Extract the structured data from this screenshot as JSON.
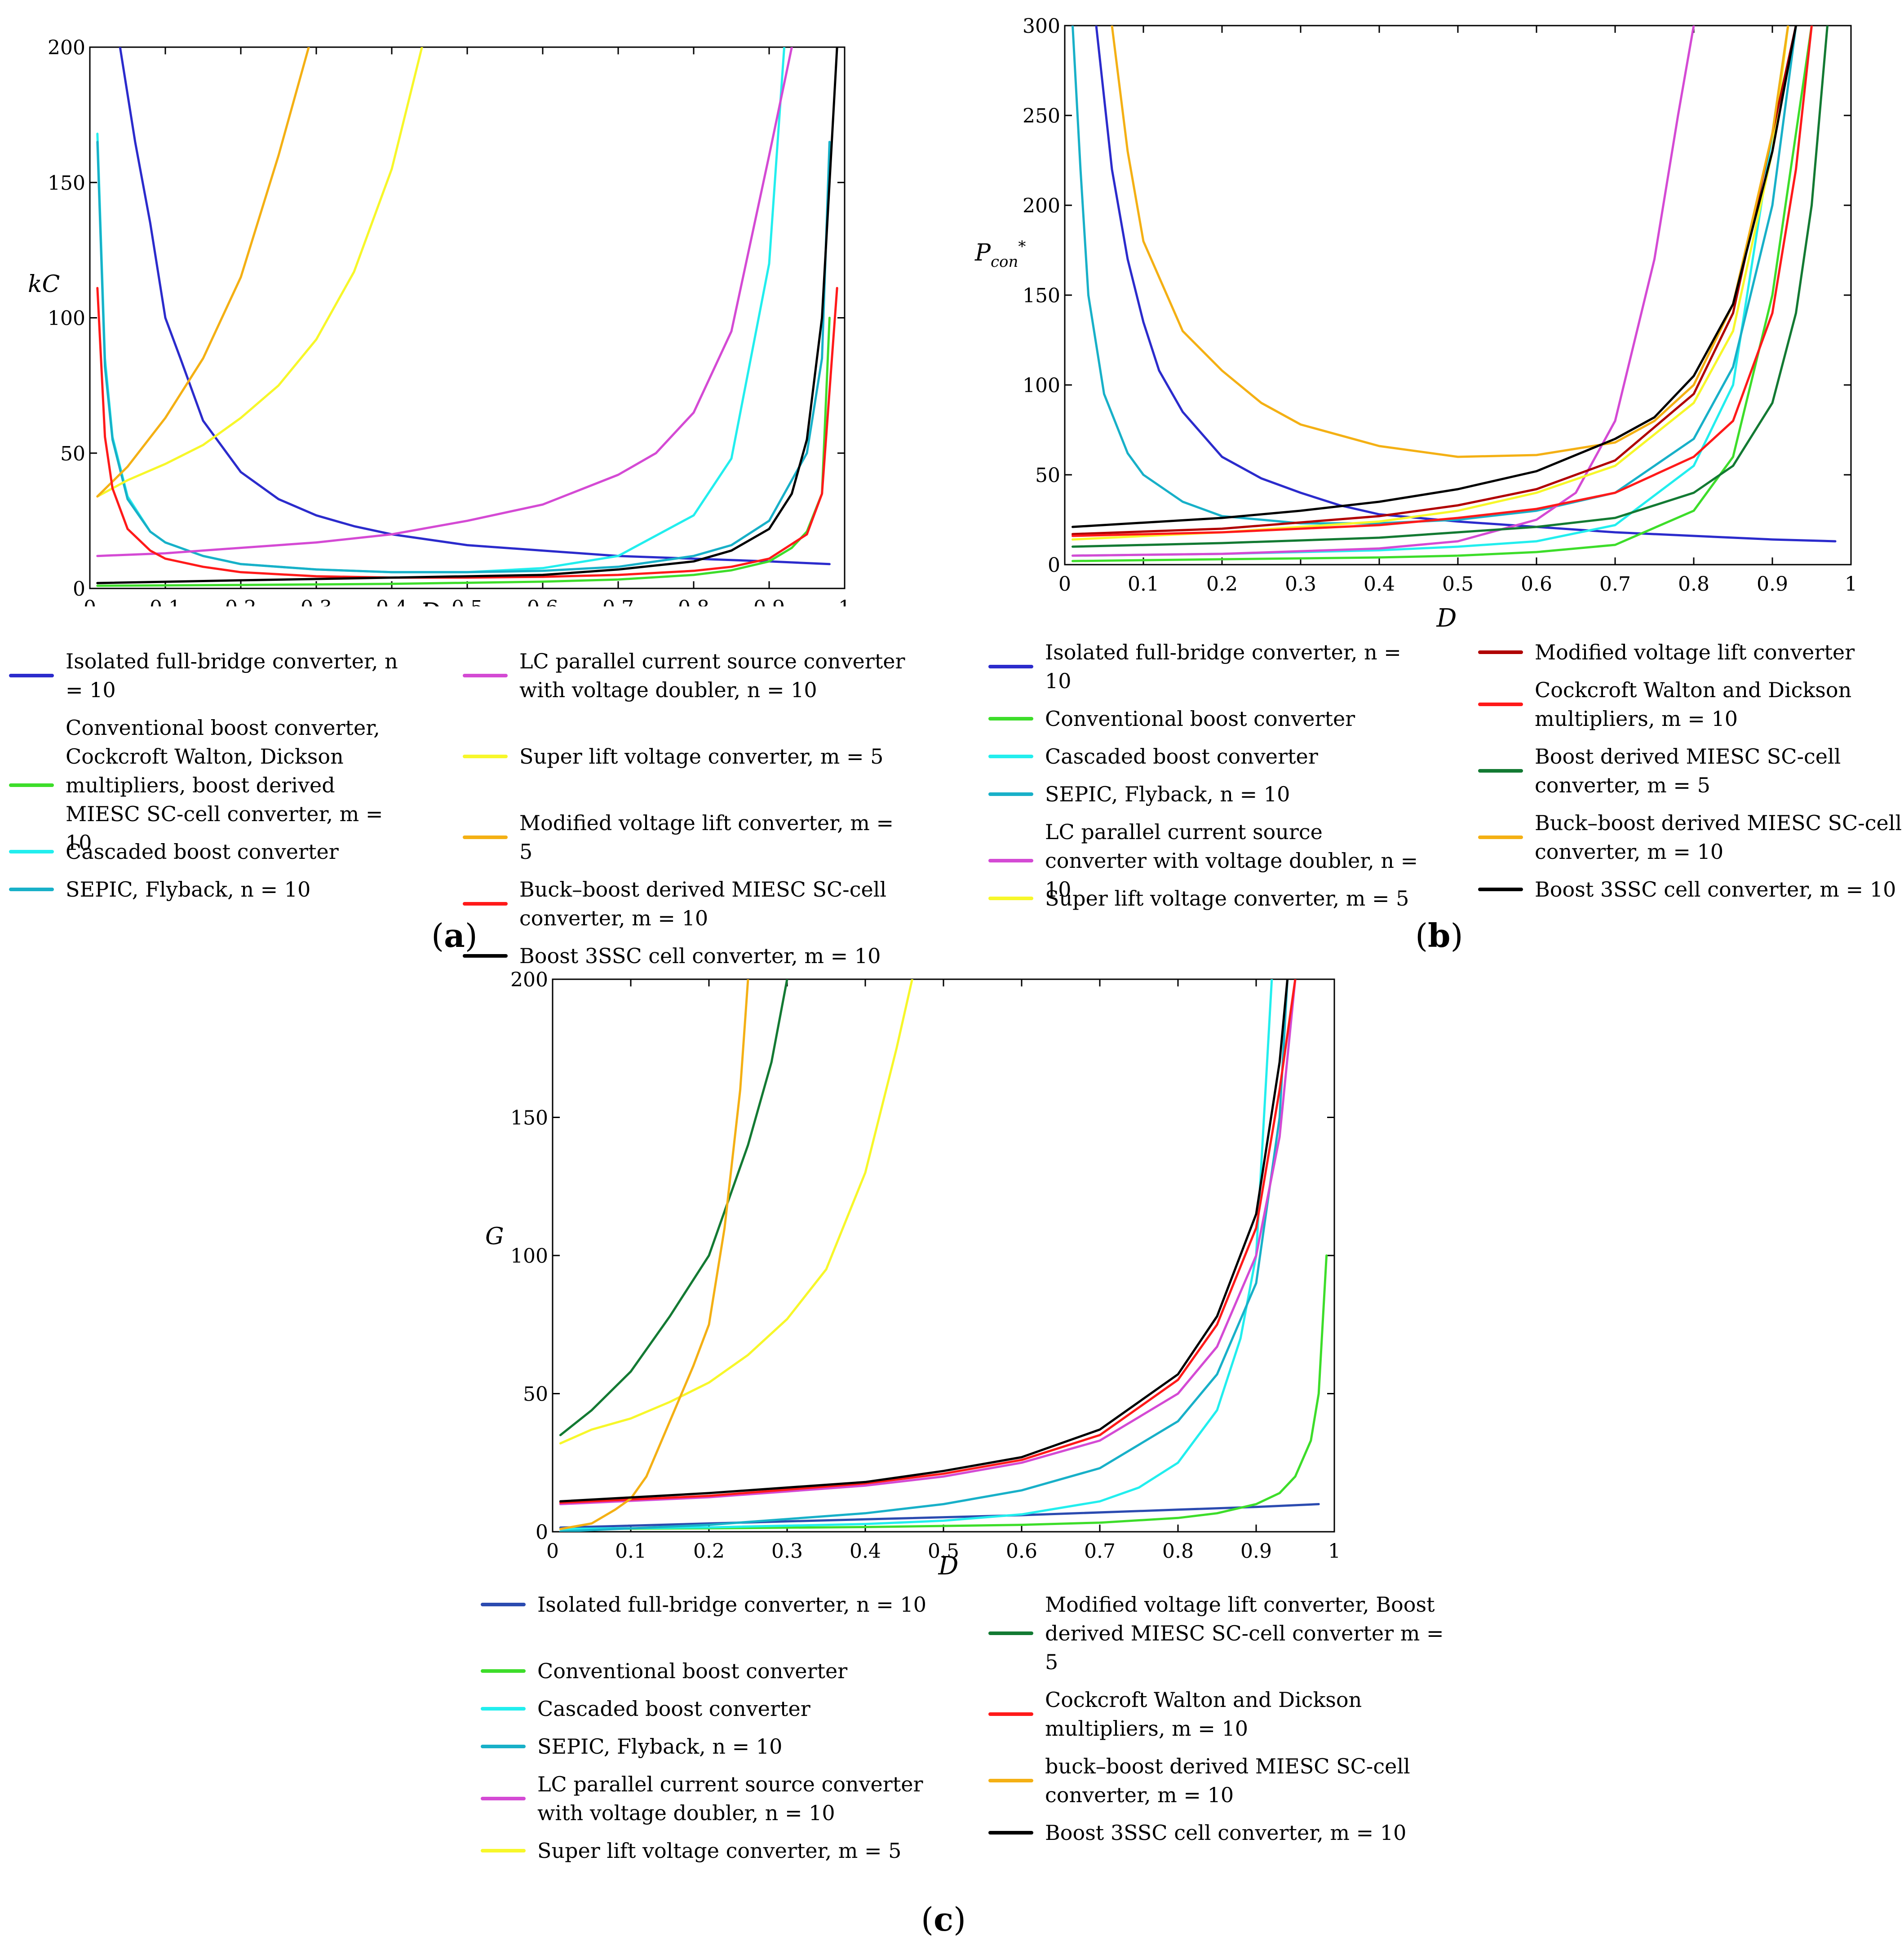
{
  "chart_data": [
    {
      "id": "a",
      "type": "line",
      "caption_letter": "a",
      "xlabel": "D",
      "ylabel": "kC",
      "xlim": [
        0,
        1
      ],
      "ylim": [
        0,
        200
      ],
      "x_ticks": [
        "0",
        "0.1",
        "0.2",
        "0.3",
        "0.4",
        "0.5",
        "0.6",
        "0.7",
        "0.8",
        "0.9",
        "1"
      ],
      "y_ticks": [
        "0",
        "50",
        "100",
        "150",
        "200"
      ],
      "series": [
        {
          "name": "Isolated full-bridge converter, n = 10",
          "color": "#2b2bcc",
          "x": [
            0.04,
            0.06,
            0.08,
            0.1,
            0.12,
            0.15,
            0.2,
            0.25,
            0.3,
            0.35,
            0.4,
            0.5,
            0.6,
            0.7,
            0.8,
            0.9,
            0.98
          ],
          "y": [
            200,
            165,
            135,
            100,
            85,
            62,
            43,
            33,
            27,
            23,
            20,
            16,
            14,
            12,
            11,
            10,
            9
          ]
        },
        {
          "name": "Conventional boost converter, Cockcroft Walton, Dickson multipliers, boost derived MIESC SC-cell converter, m = 10",
          "color": "#3ddd2a",
          "x": [
            0.01,
            0.2,
            0.4,
            0.6,
            0.7,
            0.8,
            0.85,
            0.9,
            0.93,
            0.95,
            0.97,
            0.98
          ],
          "y": [
            1,
            1.3,
            1.7,
            2.5,
            3.3,
            5,
            6.7,
            10,
            15,
            21,
            35,
            100
          ]
        },
        {
          "name": "Cascaded boost converter",
          "color": "#22eeee",
          "x": [
            0.01,
            0.02,
            0.03,
            0.05,
            0.08,
            0.1,
            0.15,
            0.2,
            0.3,
            0.4,
            0.5,
            0.6,
            0.7,
            0.8,
            0.85,
            0.9,
            0.92
          ],
          "y": [
            168,
            85,
            56,
            34,
            21,
            17,
            12,
            9,
            7,
            6,
            6,
            7.5,
            12,
            27,
            48,
            120,
            200
          ]
        },
        {
          "name": "SEPIC, Flyback, n = 10",
          "color": "#18b0c8",
          "x": [
            0.01,
            0.02,
            0.03,
            0.05,
            0.08,
            0.1,
            0.15,
            0.2,
            0.3,
            0.4,
            0.5,
            0.6,
            0.7,
            0.8,
            0.85,
            0.9,
            0.95,
            0.97,
            0.98
          ],
          "y": [
            165,
            82,
            55,
            33,
            21,
            17,
            12,
            9,
            7,
            6,
            6,
            6.5,
            8,
            12,
            16,
            25,
            50,
            85,
            165
          ]
        },
        {
          "name": "LC parallel current source converter with voltage doubler, n = 10",
          "color": "#d44ad4",
          "x": [
            0.01,
            0.1,
            0.2,
            0.3,
            0.4,
            0.5,
            0.6,
            0.7,
            0.75,
            0.8,
            0.85,
            0.9,
            0.93
          ],
          "y": [
            12,
            13,
            15,
            17,
            20,
            25,
            31,
            42,
            50,
            65,
            95,
            160,
            200
          ]
        },
        {
          "name": "Super lift voltage converter, m = 5",
          "color": "#f7f72a",
          "x": [
            0.01,
            0.05,
            0.1,
            0.15,
            0.2,
            0.25,
            0.3,
            0.35,
            0.4,
            0.44
          ],
          "y": [
            34,
            40,
            46,
            53,
            63,
            75,
            92,
            117,
            155,
            200
          ]
        },
        {
          "name": "Modified voltage lift converter, m = 5",
          "color": "#f4b014",
          "x": [
            0.01,
            0.05,
            0.1,
            0.15,
            0.2,
            0.25,
            0.29
          ],
          "y": [
            34,
            45,
            63,
            85,
            115,
            160,
            200
          ]
        },
        {
          "name": "Buck–boost derived MIESC SC-cell converter, m = 10",
          "color": "#ff1a1a",
          "x": [
            0.01,
            0.02,
            0.03,
            0.05,
            0.08,
            0.1,
            0.15,
            0.2,
            0.3,
            0.4,
            0.5,
            0.6,
            0.7,
            0.8,
            0.85,
            0.9,
            0.95,
            0.97,
            0.99
          ],
          "y": [
            111,
            56,
            37,
            22,
            14,
            11,
            8,
            6,
            4.5,
            4,
            4,
            4.3,
            5,
            6.5,
            8,
            11,
            20,
            35,
            111
          ]
        },
        {
          "name": "Boost 3SSC cell converter, m = 10",
          "color": "#000000",
          "x": [
            0.01,
            0.2,
            0.4,
            0.6,
            0.7,
            0.8,
            0.85,
            0.9,
            0.93,
            0.95,
            0.97,
            0.98,
            0.99
          ],
          "y": [
            2,
            3,
            4,
            5,
            7,
            10,
            14,
            22,
            35,
            55,
            100,
            150,
            200
          ]
        }
      ],
      "legend_left": [
        0,
        1,
        2,
        3
      ],
      "legend_right": [
        4,
        5,
        6,
        7,
        8
      ]
    },
    {
      "id": "b",
      "type": "line",
      "caption_letter": "b",
      "xlabel": "D",
      "ylabel_main": "P",
      "ylabel_sub": "con",
      "ylabel_sup": "*",
      "xlim": [
        0,
        1
      ],
      "ylim": [
        0,
        300
      ],
      "x_ticks": [
        "0",
        "0.1",
        "0.2",
        "0.3",
        "0.4",
        "0.5",
        "0.6",
        "0.7",
        "0.8",
        "0.9",
        "1"
      ],
      "y_ticks": [
        "0",
        "50",
        "100",
        "150",
        "200",
        "250",
        "300"
      ],
      "series": [
        {
          "name": "Isolated full-bridge converter, n = 10",
          "color": "#2b2bcc",
          "x": [
            0.04,
            0.06,
            0.08,
            0.1,
            0.12,
            0.15,
            0.2,
            0.25,
            0.3,
            0.35,
            0.4,
            0.5,
            0.6,
            0.7,
            0.8,
            0.9,
            0.98
          ],
          "y": [
            300,
            220,
            170,
            135,
            108,
            85,
            60,
            48,
            40,
            33,
            28,
            24,
            21,
            18,
            16,
            14,
            13
          ]
        },
        {
          "name": "Conventional boost converter",
          "color": "#3ddd2a",
          "x": [
            0.01,
            0.2,
            0.4,
            0.5,
            0.6,
            0.7,
            0.8,
            0.85,
            0.9,
            0.93,
            0.95
          ],
          "y": [
            2,
            3,
            4,
            5,
            7,
            11,
            30,
            60,
            150,
            240,
            300
          ]
        },
        {
          "name": "Cascaded boost converter",
          "color": "#22eeee",
          "x": [
            0.01,
            0.2,
            0.4,
            0.5,
            0.6,
            0.7,
            0.8,
            0.85,
            0.9,
            0.92
          ],
          "y": [
            5,
            6,
            8,
            10,
            13,
            22,
            55,
            100,
            240,
            300
          ]
        },
        {
          "name": "SEPIC, Flyback, n = 10",
          "color": "#18b0c8",
          "x": [
            0.01,
            0.02,
            0.03,
            0.05,
            0.08,
            0.1,
            0.15,
            0.2,
            0.3,
            0.4,
            0.5,
            0.6,
            0.7,
            0.8,
            0.85,
            0.9,
            0.93
          ],
          "y": [
            300,
            220,
            150,
            95,
            62,
            50,
            35,
            27,
            23,
            23,
            25,
            30,
            40,
            70,
            110,
            200,
            300
          ]
        },
        {
          "name": "LC parallel current source converter with voltage doubler, n = 10",
          "color": "#d44ad4",
          "x": [
            0.01,
            0.2,
            0.4,
            0.5,
            0.6,
            0.65,
            0.7,
            0.75,
            0.78,
            0.8
          ],
          "y": [
            5,
            6,
            9,
            13,
            25,
            40,
            80,
            170,
            250,
            300
          ]
        },
        {
          "name": "Super lift voltage converter, m = 5",
          "color": "#f7f72a",
          "x": [
            0.01,
            0.2,
            0.4,
            0.5,
            0.6,
            0.7,
            0.8,
            0.85,
            0.9,
            0.92
          ],
          "y": [
            14,
            18,
            24,
            30,
            40,
            55,
            90,
            130,
            230,
            300
          ]
        },
        {
          "name": "Modified voltage lift converter",
          "color": "#b00000",
          "x": [
            0.01,
            0.2,
            0.4,
            0.5,
            0.6,
            0.7,
            0.8,
            0.85,
            0.9,
            0.93
          ],
          "y": [
            17,
            20,
            27,
            33,
            42,
            58,
            95,
            140,
            240,
            300
          ]
        },
        {
          "name": "Cockcroft Walton and Dickson multipliers, m = 10",
          "color": "#ff1a1a",
          "x": [
            0.01,
            0.2,
            0.4,
            0.5,
            0.6,
            0.7,
            0.8,
            0.85,
            0.9,
            0.93,
            0.95
          ],
          "y": [
            16,
            18,
            22,
            26,
            31,
            40,
            60,
            80,
            140,
            220,
            300
          ]
        },
        {
          "name": "Boost derived MIESC SC-cell converter, m = 5",
          "color": "#137a33",
          "x": [
            0.01,
            0.2,
            0.4,
            0.5,
            0.6,
            0.7,
            0.8,
            0.85,
            0.9,
            0.93,
            0.95,
            0.97
          ],
          "y": [
            10,
            12,
            15,
            18,
            21,
            26,
            40,
            55,
            90,
            140,
            200,
            300
          ]
        },
        {
          "name": "Buck–boost derived MIESC SC-cell converter, m = 10",
          "color": "#f4b014",
          "x": [
            0.06,
            0.08,
            0.1,
            0.15,
            0.2,
            0.25,
            0.3,
            0.4,
            0.5,
            0.6,
            0.7,
            0.75,
            0.8,
            0.85,
            0.9,
            0.92
          ],
          "y": [
            300,
            230,
            180,
            130,
            108,
            90,
            78,
            66,
            60,
            61,
            68,
            80,
            100,
            145,
            240,
            300
          ]
        },
        {
          "name": "Boost 3SSC cell converter, m = 10",
          "color": "#000000",
          "x": [
            0.01,
            0.2,
            0.3,
            0.4,
            0.5,
            0.6,
            0.7,
            0.75,
            0.8,
            0.85,
            0.9,
            0.93
          ],
          "y": [
            21,
            26,
            30,
            35,
            42,
            52,
            70,
            82,
            105,
            145,
            230,
            300
          ]
        }
      ],
      "legend_left": [
        0,
        1,
        2,
        3,
        4,
        5
      ],
      "legend_right": [
        6,
        7,
        8,
        9,
        10
      ]
    },
    {
      "id": "c",
      "type": "line",
      "caption_letter": "c",
      "xlabel": "D",
      "ylabel": "G",
      "xlim": [
        0,
        1
      ],
      "ylim": [
        0,
        200
      ],
      "x_ticks": [
        "0",
        "0.1",
        "0.2",
        "0.3",
        "0.4",
        "0.5",
        "0.6",
        "0.7",
        "0.8",
        "0.9",
        "1"
      ],
      "y_ticks": [
        "0",
        "50",
        "100",
        "150",
        "200"
      ],
      "series": [
        {
          "name": "Isolated full-bridge converter, n = 10",
          "color": "#2b4bb0",
          "x": [
            0.01,
            0.2,
            0.4,
            0.6,
            0.8,
            0.9,
            0.98
          ],
          "y": [
            1.5,
            3,
            4.5,
            6,
            8,
            9,
            10
          ]
        },
        {
          "name": "Conventional boost converter",
          "color": "#3ddd2a",
          "x": [
            0.01,
            0.2,
            0.4,
            0.6,
            0.7,
            0.8,
            0.85,
            0.9,
            0.93,
            0.95,
            0.97,
            0.98,
            0.99
          ],
          "y": [
            1,
            1.25,
            1.7,
            2.5,
            3.3,
            5,
            6.7,
            10,
            14,
            20,
            33,
            50,
            100
          ]
        },
        {
          "name": "Cascaded boost converter",
          "color": "#22eeee",
          "x": [
            0.01,
            0.2,
            0.4,
            0.5,
            0.6,
            0.7,
            0.75,
            0.8,
            0.85,
            0.88,
            0.9,
            0.92
          ],
          "y": [
            1,
            1.6,
            2.8,
            4,
            6.3,
            11,
            16,
            25,
            44,
            70,
            100,
            200
          ]
        },
        {
          "name": "SEPIC, Flyback, n = 10",
          "color": "#18b0c8",
          "x": [
            0.01,
            0.2,
            0.4,
            0.5,
            0.6,
            0.7,
            0.8,
            0.85,
            0.9,
            0.93,
            0.94
          ],
          "y": [
            0.1,
            2.5,
            6.7,
            10,
            15,
            23,
            40,
            57,
            90,
            150,
            200
          ]
        },
        {
          "name": "LC parallel current source converter with voltage doubler, n = 10",
          "color": "#d44ad4",
          "x": [
            0.01,
            0.2,
            0.4,
            0.5,
            0.6,
            0.7,
            0.8,
            0.85,
            0.9,
            0.93,
            0.95
          ],
          "y": [
            10,
            12.5,
            16.7,
            20,
            25,
            33,
            50,
            67,
            100,
            143,
            200
          ]
        },
        {
          "name": "Super lift voltage converter, m = 5",
          "color": "#f7f72a",
          "x": [
            0.01,
            0.05,
            0.1,
            0.15,
            0.2,
            0.25,
            0.3,
            0.35,
            0.4,
            0.44,
            0.46
          ],
          "y": [
            32,
            37,
            41,
            47,
            54,
            64,
            77,
            95,
            130,
            175,
            200
          ]
        },
        {
          "name": "Modified voltage lift converter, Boost derived MIESC SC-cell converter  m = 5",
          "color": "#137a33",
          "x": [
            0.01,
            0.05,
            0.1,
            0.15,
            0.2,
            0.25,
            0.28,
            0.3
          ],
          "y": [
            35,
            44,
            58,
            78,
            100,
            140,
            170,
            200
          ]
        },
        {
          "name": "Cockcroft Walton and Dickson multipliers, m = 10",
          "color": "#ff1a1a",
          "x": [
            0.01,
            0.2,
            0.4,
            0.5,
            0.6,
            0.7,
            0.8,
            0.85,
            0.9,
            0.93,
            0.95
          ],
          "y": [
            10.5,
            13,
            17.5,
            21,
            26,
            35,
            55,
            75,
            110,
            160,
            200
          ]
        },
        {
          "name": "buck–boost derived MIESC SC-cell converter, m = 10",
          "color": "#f4b014",
          "x": [
            0.01,
            0.05,
            0.08,
            0.1,
            0.12,
            0.15,
            0.18,
            0.2,
            0.22,
            0.24,
            0.25
          ],
          "y": [
            1,
            3,
            8,
            12,
            20,
            40,
            60,
            75,
            110,
            160,
            200
          ]
        },
        {
          "name": "Boost 3SSC cell converter, m = 10",
          "color": "#000000",
          "x": [
            0.01,
            0.2,
            0.4,
            0.5,
            0.6,
            0.7,
            0.8,
            0.85,
            0.9,
            0.93,
            0.94
          ],
          "y": [
            11,
            14,
            18,
            22,
            27,
            37,
            57,
            78,
            115,
            170,
            200
          ]
        }
      ],
      "legend_left": [
        0,
        1,
        2,
        3,
        4,
        5
      ],
      "legend_right": [
        6,
        7,
        8,
        9
      ]
    }
  ]
}
